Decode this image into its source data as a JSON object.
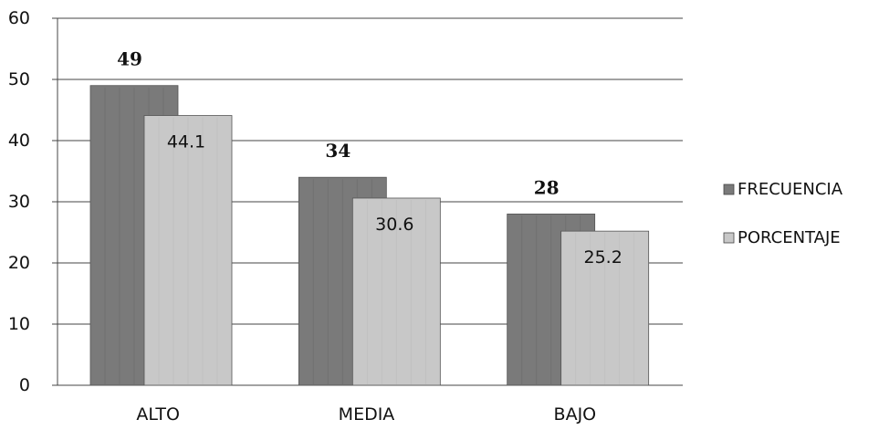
{
  "chart_data": {
    "type": "bar",
    "categories": [
      "ALTO",
      "MEDIA",
      "BAJO"
    ],
    "series": [
      {
        "name": "FRECUENCIA",
        "values": [
          49,
          34,
          28
        ],
        "color": "#7a7a7a"
      },
      {
        "name": "PORCENTAJE",
        "values": [
          44.1,
          30.6,
          25.2
        ],
        "color": "#c8c8c8"
      }
    ],
    "ylim": [
      0,
      60
    ],
    "yticks": [
      0,
      10,
      20,
      30,
      40,
      50,
      60
    ],
    "grid": true,
    "legend": "right",
    "data_labels": {
      "FRECUENCIA": [
        "49",
        "34",
        "28"
      ],
      "PORCENTAJE": [
        "44.1",
        "30.6",
        "25.2"
      ]
    }
  }
}
